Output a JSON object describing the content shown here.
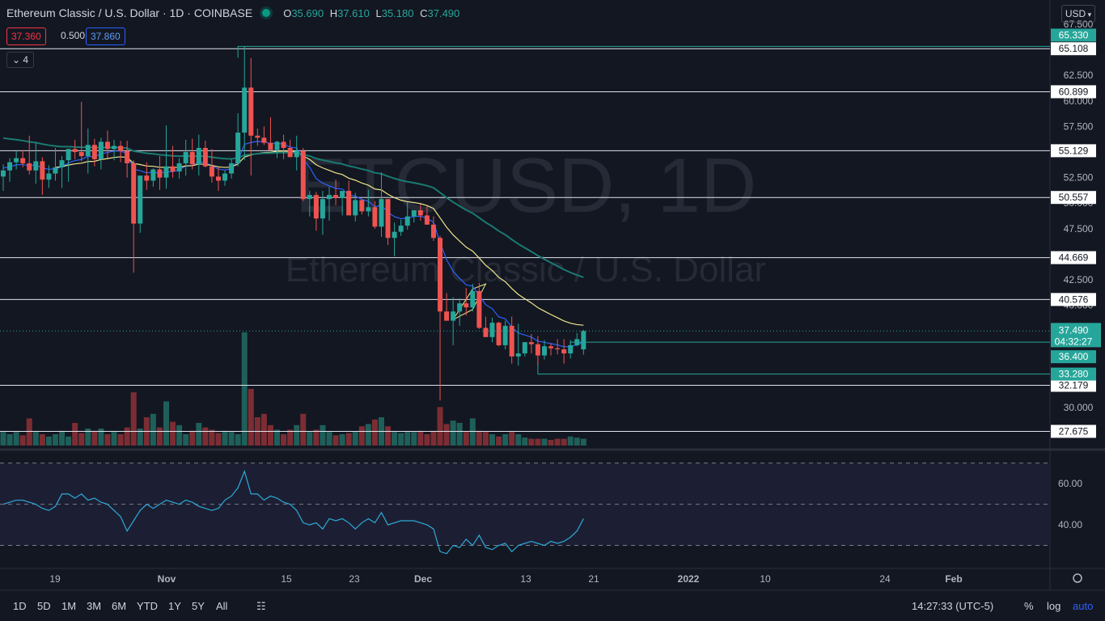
{
  "header": {
    "title": "Ethereum Classic / U.S. Dollar · 1D · COINBASE",
    "ohlc": [
      {
        "k": "O",
        "v": "35.690"
      },
      {
        "k": "H",
        "v": "37.610"
      },
      {
        "k": "L",
        "v": "35.180"
      },
      {
        "k": "C",
        "v": "37.490"
      }
    ],
    "bid": "37.360",
    "spread": "0.500",
    "ask": "37.860",
    "indicator_count": "4",
    "currency": "USD"
  },
  "watermark": {
    "symbol": "ETCUSD, 1D",
    "name": "Ethereum Classic / U.S. Dollar"
  },
  "colors": {
    "bg": "#131722",
    "up": "#26a69a",
    "down": "#ef5350",
    "vol_up": "#1f5f5a",
    "vol_down": "#7c2d33",
    "ema_short": "#2962ff",
    "ema_mid": "#f0e68c",
    "ema_long": "#1a7a72",
    "rsi": "#2ea8d8",
    "green_label": "#26a69a"
  },
  "chart_data": {
    "type": "candlestick",
    "title": "Ethereum Classic / U.S. Dollar",
    "interval": "1D",
    "exchange": "COINBASE",
    "price_axis": {
      "ticks": [
        "67.500",
        "62.500",
        "60.000",
        "57.500",
        "52.500",
        "50.000",
        "47.500",
        "42.500",
        "40.000",
        "30.000"
      ],
      "ylim": [
        27.0,
        67.5
      ]
    },
    "time_axis": {
      "ticks": [
        "19",
        "Nov",
        "15",
        "23",
        "Dec",
        "13",
        "21",
        "2022",
        "10",
        "24",
        "Feb"
      ],
      "first_date": "2021-10-12",
      "last_date": "2021-12-23"
    },
    "resistance_support_lines": [
      "65.108",
      "60.899",
      "55.129",
      "50.557",
      "44.669",
      "40.576",
      "32.179",
      "27.675"
    ],
    "green_levels": [
      "65.330",
      "36.400",
      "33.280"
    ],
    "last_price": {
      "value": "37.490",
      "countdown": "04:32:27"
    },
    "candles_ohlc": [
      [
        52.6,
        53.8,
        51.2,
        53.2
      ],
      [
        53.2,
        54.4,
        52.1,
        54.0
      ],
      [
        54.0,
        55.1,
        53.3,
        54.4
      ],
      [
        54.4,
        55.2,
        53.5,
        53.9
      ],
      [
        53.9,
        56.6,
        52.8,
        53.2
      ],
      [
        53.2,
        55.9,
        51.9,
        54.1
      ],
      [
        54.1,
        54.5,
        50.8,
        52.3
      ],
      [
        52.3,
        53.7,
        51.5,
        52.9
      ],
      [
        52.9,
        55.4,
        52.2,
        53.5
      ],
      [
        53.5,
        54.6,
        51.5,
        54.2
      ],
      [
        54.2,
        55.3,
        52.1,
        55.3
      ],
      [
        55.3,
        56.2,
        54.3,
        55.0
      ],
      [
        55.0,
        59.9,
        54.1,
        54.6
      ],
      [
        54.6,
        57.3,
        52.9,
        55.7
      ],
      [
        55.7,
        56.3,
        53.6,
        54.3
      ],
      [
        54.3,
        56.4,
        53.3,
        56.0
      ],
      [
        56.0,
        57.1,
        54.4,
        55.3
      ],
      [
        55.3,
        56.2,
        54.2,
        55.6
      ],
      [
        55.6,
        56.1,
        54.0,
        55.1
      ],
      [
        55.1,
        56.1,
        52.5,
        53.9
      ],
      [
        53.9,
        54.2,
        43.2,
        48.0
      ],
      [
        48.0,
        52.4,
        47.1,
        52.7
      ],
      [
        52.7,
        54.0,
        51.3,
        52.2
      ],
      [
        52.2,
        53.4,
        51.6,
        53.3
      ],
      [
        53.3,
        54.6,
        51.3,
        52.5
      ],
      [
        52.5,
        57.6,
        51.4,
        53.6
      ],
      [
        53.6,
        55.6,
        52.5,
        53.1
      ],
      [
        53.1,
        54.4,
        52.4,
        53.9
      ],
      [
        53.9,
        56.2,
        52.7,
        55.0
      ],
      [
        55.0,
        56.3,
        53.3,
        53.8
      ],
      [
        53.8,
        56.7,
        52.7,
        55.4
      ],
      [
        55.4,
        56.1,
        53.5,
        53.6
      ],
      [
        53.6,
        55.3,
        52.0,
        52.6
      ],
      [
        52.6,
        53.5,
        51.2,
        52.2
      ],
      [
        52.2,
        53.2,
        51.7,
        52.9
      ],
      [
        52.9,
        54.3,
        52.4,
        53.9
      ],
      [
        53.9,
        58.8,
        53.6,
        56.9
      ],
      [
        56.9,
        65.33,
        54.2,
        61.3
      ],
      [
        61.3,
        64.2,
        52.7,
        56.6
      ],
      [
        56.6,
        57.3,
        55.6,
        56.4
      ],
      [
        56.4,
        57.5,
        55.7,
        55.9
      ],
      [
        55.9,
        58.4,
        55.4,
        55.2
      ],
      [
        55.2,
        56.1,
        54.4,
        56.0
      ],
      [
        56.0,
        56.7,
        54.3,
        55.4
      ],
      [
        55.4,
        56.2,
        54.7,
        54.5
      ],
      [
        54.5,
        56.6,
        53.2,
        55.1
      ],
      [
        55.1,
        55.4,
        50.2,
        50.4
      ],
      [
        50.4,
        51.2,
        48.7,
        50.8
      ],
      [
        50.8,
        51.1,
        47.3,
        48.5
      ],
      [
        48.5,
        51.2,
        46.9,
        50.4
      ],
      [
        50.4,
        51.6,
        48.3,
        50.8
      ],
      [
        50.8,
        52.3,
        49.8,
        50.5
      ],
      [
        50.5,
        51.1,
        48.8,
        51.2
      ],
      [
        51.2,
        52.2,
        49.3,
        48.8
      ],
      [
        48.8,
        51.0,
        48.2,
        50.3
      ],
      [
        50.3,
        50.4,
        48.9,
        49.2
      ],
      [
        49.2,
        51.3,
        48.7,
        49.6
      ],
      [
        49.6,
        50.2,
        47.5,
        47.7
      ],
      [
        47.7,
        53.0,
        46.7,
        50.4
      ],
      [
        50.4,
        50.3,
        45.9,
        46.6
      ],
      [
        46.6,
        48.1,
        44.8,
        47.2
      ],
      [
        47.2,
        48.4,
        46.8,
        47.8
      ],
      [
        47.8,
        50.1,
        47.4,
        48.7
      ],
      [
        48.7,
        49.1,
        48.1,
        49.3
      ],
      [
        49.3,
        49.9,
        48.3,
        48.8
      ],
      [
        48.8,
        49.7,
        47.9,
        47.9
      ],
      [
        47.9,
        48.7,
        46.3,
        46.6
      ],
      [
        46.6,
        46.8,
        30.7,
        39.4
      ],
      [
        39.4,
        41.2,
        38.6,
        38.5
      ],
      [
        38.5,
        40.8,
        36.1,
        39.4
      ],
      [
        39.4,
        40.7,
        38.0,
        40.2
      ],
      [
        40.2,
        41.7,
        39.0,
        39.8
      ],
      [
        39.8,
        42.1,
        39.4,
        41.4
      ],
      [
        41.4,
        42.2,
        37.7,
        37.8
      ],
      [
        37.8,
        38.9,
        37.4,
        36.9
      ],
      [
        36.9,
        38.8,
        36.4,
        38.3
      ],
      [
        38.3,
        38.4,
        36.0,
        36.1
      ],
      [
        36.1,
        38.5,
        35.7,
        38.0
      ],
      [
        38.0,
        38.9,
        34.3,
        35.0
      ],
      [
        35.0,
        38.2,
        34.1,
        35.3
      ],
      [
        35.3,
        36.4,
        35.0,
        36.4
      ],
      [
        36.4,
        37.2,
        35.3,
        36.2
      ],
      [
        36.2,
        37.0,
        34.2,
        35.1
      ],
      [
        35.1,
        36.6,
        34.7,
        36.0
      ],
      [
        36.0,
        36.3,
        35.1,
        35.8
      ],
      [
        35.8,
        36.7,
        35.2,
        35.7
      ],
      [
        35.7,
        36.7,
        34.3,
        35.3
      ],
      [
        35.3,
        36.6,
        34.8,
        36.1
      ],
      [
        36.1,
        37.3,
        36.0,
        36.7
      ],
      [
        35.69,
        37.61,
        35.18,
        37.49
      ]
    ],
    "volume_relative": [
      0.12,
      0.1,
      0.12,
      0.09,
      0.24,
      0.12,
      0.1,
      0.08,
      0.1,
      0.13,
      0.08,
      0.2,
      0.11,
      0.15,
      0.13,
      0.15,
      0.1,
      0.12,
      0.1,
      0.16,
      0.47,
      0.15,
      0.25,
      0.28,
      0.16,
      0.39,
      0.21,
      0.18,
      0.1,
      0.13,
      0.2,
      0.16,
      0.14,
      0.11,
      0.13,
      0.12,
      0.1,
      1.0,
      0.5,
      0.25,
      0.28,
      0.18,
      0.14,
      0.1,
      0.14,
      0.18,
      0.28,
      0.12,
      0.14,
      0.18,
      0.12,
      0.09,
      0.1,
      0.11,
      0.12,
      0.17,
      0.19,
      0.23,
      0.25,
      0.17,
      0.12,
      0.11,
      0.12,
      0.12,
      0.13,
      0.1,
      0.13,
      0.34,
      0.19,
      0.22,
      0.2,
      0.12,
      0.24,
      0.13,
      0.12,
      0.1,
      0.08,
      0.1,
      0.12,
      0.1,
      0.07,
      0.06,
      0.06,
      0.06,
      0.05,
      0.06,
      0.06,
      0.08,
      0.07,
      0.06
    ],
    "rsi": {
      "axis_ticks": [
        "60.00",
        "40.00"
      ],
      "ylim": [
        20,
        75
      ],
      "upper_band": 70,
      "mid_band": 50,
      "lower_band": 30,
      "values": [
        50,
        51,
        52,
        52,
        51,
        50,
        48,
        47,
        49,
        55,
        55,
        53,
        55,
        52,
        53,
        51,
        50,
        47,
        44,
        37,
        42,
        47,
        50,
        48,
        50,
        52,
        51,
        50,
        52,
        51,
        49,
        48,
        47,
        48,
        52,
        54,
        58,
        66,
        55,
        55,
        52,
        54,
        53,
        51,
        50,
        47,
        41,
        40,
        41,
        38,
        43,
        42,
        43,
        41,
        38,
        41,
        43,
        41,
        46,
        40,
        41,
        42,
        42,
        42,
        41,
        40,
        38,
        27,
        26,
        30,
        29,
        33,
        30,
        35,
        29,
        28,
        30,
        31,
        27,
        30,
        31,
        32,
        31,
        30,
        32,
        31,
        32,
        34,
        37,
        43
      ]
    },
    "ma": {
      "short_period_values_note": "",
      "long_end": 45.6
    }
  },
  "time_labels": [
    "19",
    "Nov",
    "15",
    "23",
    "Dec",
    "13",
    "21",
    "2022",
    "10",
    "24",
    "Feb"
  ],
  "toolbar": {
    "timeframes": [
      "1D",
      "5D",
      "1M",
      "3M",
      "6M",
      "YTD",
      "1Y",
      "5Y",
      "All"
    ],
    "clock": "14:27:33 (UTC-5)",
    "percent": "%",
    "log": "log",
    "auto": "auto"
  }
}
